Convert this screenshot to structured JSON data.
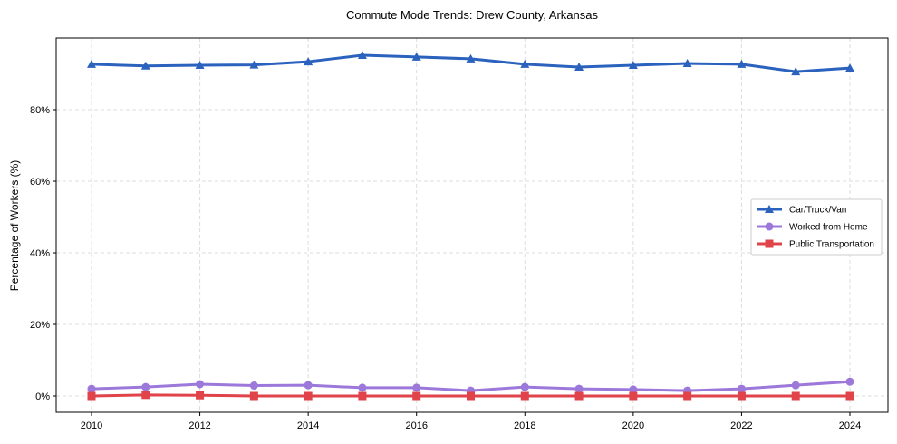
{
  "chart_data": {
    "type": "line",
    "title": "Commute Mode Trends: Drew County, Arkansas",
    "xlabel": "",
    "ylabel": "Percentage of Workers (%)",
    "x": [
      2010,
      2011,
      2012,
      2013,
      2014,
      2015,
      2016,
      2017,
      2018,
      2019,
      2020,
      2021,
      2022,
      2023,
      2024
    ],
    "xticks": [
      "2010",
      "2012",
      "2014",
      "2016",
      "2018",
      "2020",
      "2022",
      "2024"
    ],
    "yticks": [
      "0%",
      "20%",
      "40%",
      "60%",
      "80%"
    ],
    "ylim": [
      -4.5,
      100
    ],
    "xlim": [
      2009.35,
      2024.7
    ],
    "grid": true,
    "legend_position": "center-right",
    "series": [
      {
        "name": "Car/Truck/Van",
        "color": "#2a62bd",
        "marker": "triangle",
        "values": [
          92.7,
          92.2,
          92.4,
          92.5,
          93.4,
          95.2,
          94.7,
          94.2,
          92.7,
          91.9,
          92.4,
          92.9,
          92.7,
          90.6,
          91.6
        ]
      },
      {
        "name": "Worked from Home",
        "color": "#9b78d9",
        "marker": "circle",
        "values": [
          2.0,
          2.5,
          3.3,
          2.9,
          3.0,
          2.3,
          2.3,
          1.5,
          2.5,
          2.0,
          1.8,
          1.5,
          2.0,
          3.0,
          4.0
        ]
      },
      {
        "name": "Public Transportation",
        "color": "#e0434a",
        "marker": "square",
        "values": [
          0.0,
          0.3,
          0.2,
          0.0,
          0.0,
          0.0,
          0.0,
          0.0,
          0.0,
          0.0,
          0.0,
          0.0,
          0.0,
          0.0,
          0.0
        ]
      }
    ]
  }
}
